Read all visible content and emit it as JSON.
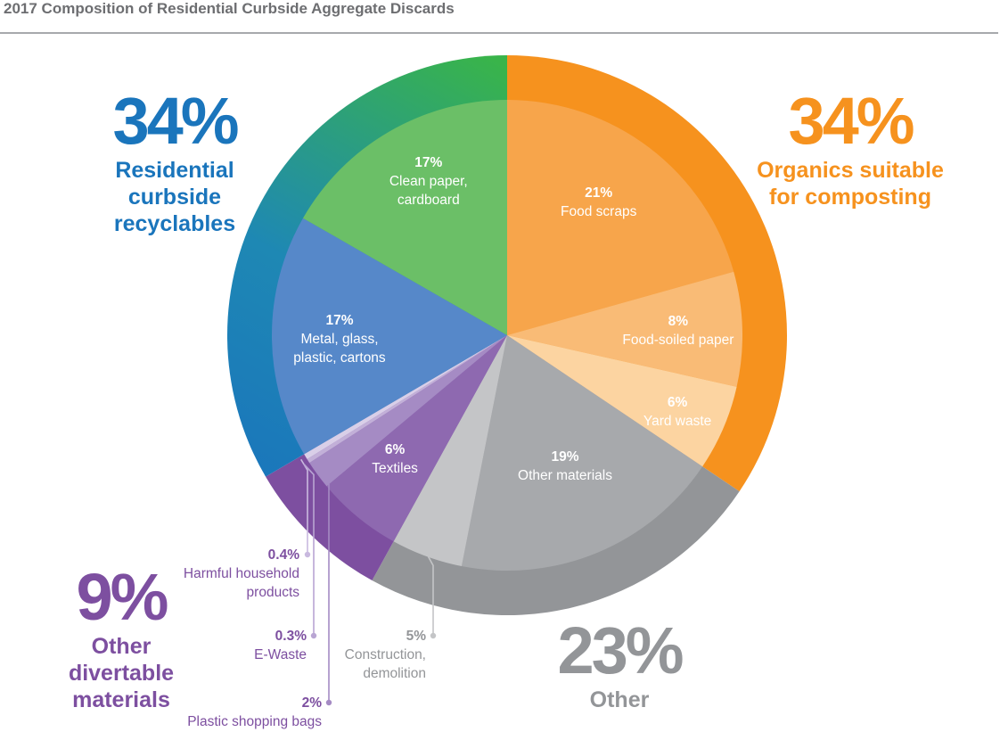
{
  "chart_data": {
    "type": "pie",
    "title": "2017 Composition of Residential Curbside Aggregate Discards",
    "slices": [
      {
        "key": "food",
        "pct_label": "21%",
        "name": "Food scraps",
        "value": 21,
        "color": "#f7a54b"
      },
      {
        "key": "soiled",
        "pct_label": "8%",
        "name": "Food-soiled paper",
        "value": 8,
        "color": "#f9bb76"
      },
      {
        "key": "yard",
        "pct_label": "6%",
        "name": "Yard waste",
        "value": 6,
        "color": "#fcd4a1"
      },
      {
        "key": "othermat",
        "pct_label": "19%",
        "name": "Other materials",
        "value": 19,
        "color": "#a7a9ac"
      },
      {
        "key": "construction",
        "pct_label": "5%",
        "name": "Construction,\ndemolition",
        "value": 5,
        "color": "#c4c5c7"
      },
      {
        "key": "textiles",
        "pct_label": "6%",
        "name": "Textiles",
        "value": 6,
        "color": "#8e69b0"
      },
      {
        "key": "bags",
        "pct_label": "2%",
        "name": "Plastic shopping bags",
        "value": 2,
        "color": "#a58bc4"
      },
      {
        "key": "ewaste",
        "pct_label": "0.3%",
        "name": "E-Waste",
        "value": 0.3,
        "color": "#c2b0d8"
      },
      {
        "key": "harmful",
        "pct_label": "0.4%",
        "name": "Harmful household\nproducts",
        "value": 0.4,
        "color": "#d9cfe8"
      },
      {
        "key": "metal",
        "pct_label": "17%",
        "name": "Metal, glass,\nplastic, cartons",
        "value": 17,
        "color": "#5688c9"
      },
      {
        "key": "paper",
        "pct_label": "17%",
        "name": "Clean paper,\ncardboard",
        "value": 17,
        "color": "#6bbf67"
      }
    ],
    "groups": [
      {
        "key": "organics",
        "pct_label": "34%",
        "name": "Organics suitable\nfor composting",
        "value": 34,
        "color": "#f6921e",
        "members": [
          "food",
          "soiled",
          "yard"
        ]
      },
      {
        "key": "other",
        "pct_label": "23%",
        "name": "Other",
        "value": 23,
        "color": "#939598",
        "members": [
          "othermat",
          "construction"
        ]
      },
      {
        "key": "divertable",
        "pct_label": "9%",
        "name": "Other\ndivertable\nmaterials",
        "value": 9,
        "color": "#7d4fa0",
        "members": [
          "textiles",
          "bags",
          "ewaste",
          "harmful"
        ]
      },
      {
        "key": "recyclables",
        "pct_label": "34%",
        "name": "Residential\ncurbside\nrecyclables",
        "value": 34,
        "color": "#1a75bc",
        "color_end": "#39b44a",
        "members": [
          "metal",
          "paper"
        ]
      }
    ],
    "label_colors": {
      "callout_pct": "#7d4fa0",
      "callout_name": "#7d4fa0",
      "construction": "#939598"
    }
  }
}
